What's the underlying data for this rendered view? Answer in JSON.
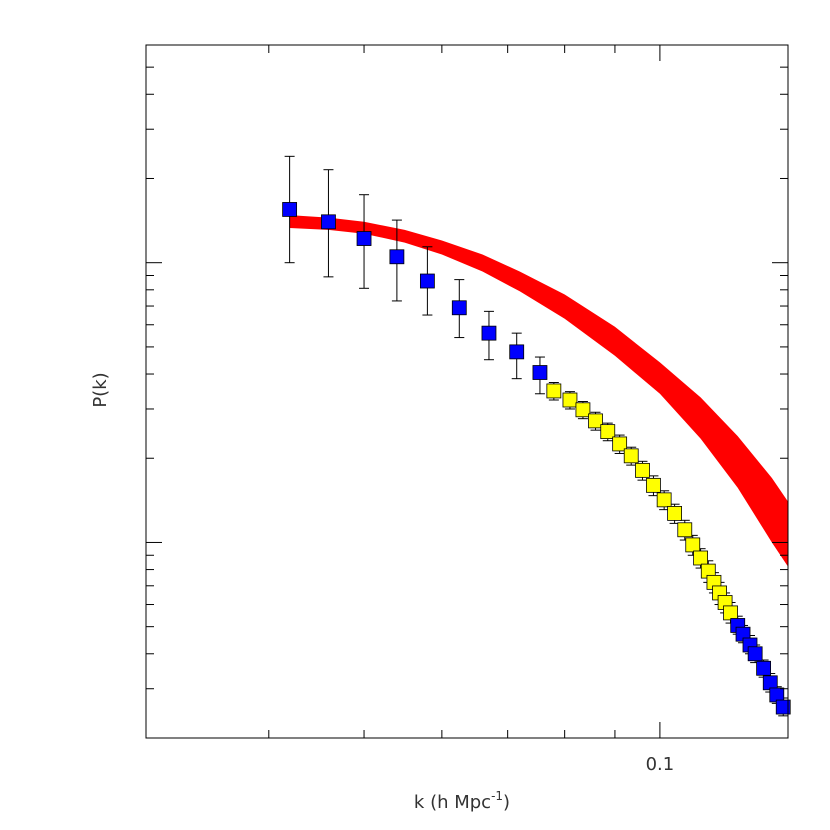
{
  "chart_data": {
    "type": "scatter",
    "title": "",
    "xlabel": "k (h Mpc",
    "xlabel_sup": "-1",
    "xlabel_close": ")",
    "ylabel": "P(k)",
    "xscale": "log",
    "yscale": "log",
    "xlim": [
      0.03,
      0.135
    ],
    "ylim": [
      200,
      60000
    ],
    "x_tick_labels": [
      {
        "value": 0.1,
        "label": "0.1"
      }
    ],
    "grid": false,
    "colors": {
      "band": "#ff0000",
      "blue_points": "#0000ff",
      "yellow_points": "#ffff00",
      "errorbar": "#000000",
      "axes": "#000000"
    },
    "band": {
      "x": [
        0.042,
        0.046,
        0.05,
        0.055,
        0.06,
        0.066,
        0.072,
        0.08,
        0.09,
        0.1,
        0.11,
        0.12,
        0.13,
        0.135
      ],
      "upper": [
        14800,
        14500,
        14000,
        13100,
        12000,
        10700,
        9300,
        7700,
        5900,
        4400,
        3300,
        2400,
        1700,
        1400
      ],
      "lower": [
        13300,
        13100,
        12700,
        11800,
        10700,
        9300,
        7900,
        6300,
        4650,
        3400,
        2350,
        1570,
        1000,
        820
      ]
    },
    "series": [
      {
        "color": "blue",
        "x": [
          0.042,
          0.046,
          0.05,
          0.054,
          0.058,
          0.0625,
          0.067,
          0.0715,
          0.0755
        ],
        "y": [
          15500,
          14000,
          12200,
          10500,
          8600,
          6900,
          5600,
          4800,
          4050
        ],
        "yerr_high": [
          24000,
          21500,
          17500,
          14200,
          11400,
          8700,
          6700,
          5600,
          4600
        ],
        "yerr_low": [
          10000,
          8900,
          8100,
          7300,
          6500,
          5400,
          4500,
          3850,
          3400
        ]
      },
      {
        "color": "yellow",
        "x": [
          0.078,
          0.081,
          0.0835,
          0.086,
          0.0885,
          0.091,
          0.0935,
          0.096,
          0.0985,
          0.101,
          0.1035,
          0.106,
          0.108,
          0.11,
          0.112,
          0.1135,
          0.115,
          0.1165,
          0.118
        ],
        "y": [
          3480,
          3230,
          2980,
          2720,
          2490,
          2250,
          2040,
          1810,
          1600,
          1420,
          1270,
          1110,
          980,
          880,
          790,
          720,
          660,
          610,
          560
        ],
        "yerr_high": [
          3730,
          3460,
          3190,
          2920,
          2670,
          2420,
          2190,
          1950,
          1730,
          1530,
          1370,
          1200,
          1060,
          950,
          860,
          780,
          720,
          660,
          610
        ],
        "yerr_low": [
          3230,
          3000,
          2770,
          2520,
          2310,
          2080,
          1890,
          1670,
          1470,
          1310,
          1170,
          1020,
          900,
          810,
          720,
          660,
          600,
          560,
          515
        ]
      },
      {
        "color": "blue",
        "x": [
          0.12,
          0.1215,
          0.1235,
          0.125,
          0.1275,
          0.1295,
          0.1315,
          0.1335
        ],
        "y": [
          505,
          470,
          430,
          400,
          355,
          315,
          285,
          258
        ],
        "yerr_high": [
          545,
          505,
          465,
          430,
          380,
          340,
          305,
          278
        ],
        "yerr_low": [
          470,
          438,
          400,
          372,
          330,
          292,
          266,
          240
        ]
      }
    ]
  }
}
